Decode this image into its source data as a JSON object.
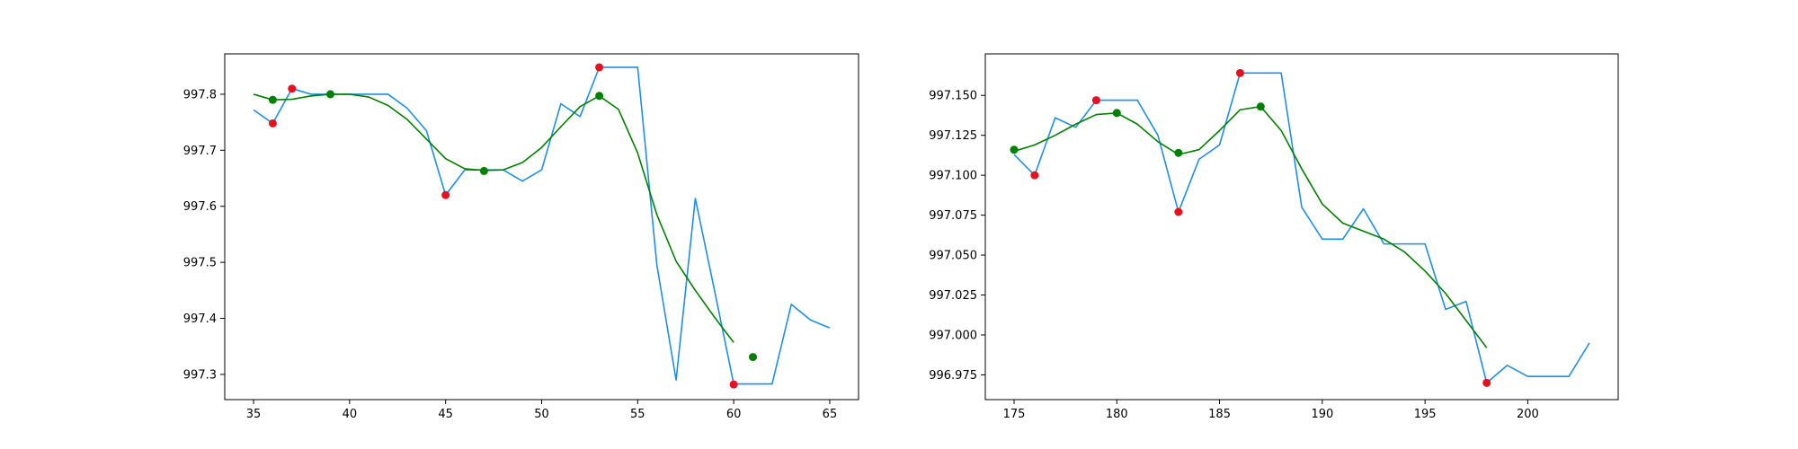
{
  "chart_data": [
    {
      "type": "line",
      "title": "",
      "xlabel": "",
      "ylabel": "",
      "xlim": [
        33.5,
        66.5
      ],
      "ylim": [
        997.255,
        997.872
      ],
      "xticks": [
        35,
        40,
        45,
        50,
        55,
        60,
        65
      ],
      "yticks": [
        997.3,
        997.4,
        997.5,
        997.6,
        997.7,
        997.8
      ],
      "ytick_decimals": 1,
      "grid": false,
      "legend": "none",
      "series": [
        {
          "color": "#1f8fe6",
          "x": [
            35,
            36,
            37,
            38,
            39,
            40,
            41,
            42,
            43,
            44,
            45,
            46,
            47,
            48,
            49,
            50,
            51,
            52,
            53,
            54,
            55,
            56,
            57,
            58,
            59,
            60,
            61,
            62,
            63,
            64,
            65
          ],
          "y": [
            997.772,
            997.748,
            997.81,
            997.8,
            997.8,
            997.8,
            997.8,
            997.8,
            997.775,
            997.735,
            997.62,
            997.665,
            997.665,
            997.665,
            997.645,
            997.665,
            997.783,
            997.76,
            997.848,
            997.848,
            997.848,
            997.495,
            997.29,
            997.614,
            997.45,
            997.283,
            997.283,
            997.283,
            997.425,
            997.397,
            997.383
          ]
        },
        {
          "color": "#008000",
          "x": [
            35,
            36,
            37,
            38,
            39,
            40,
            41,
            42,
            43,
            44,
            45,
            46,
            47,
            48,
            49,
            50,
            51,
            52,
            53,
            54,
            55,
            56,
            57,
            58,
            59,
            60
          ],
          "y": [
            997.8,
            997.79,
            997.791,
            997.797,
            997.8,
            997.8,
            997.795,
            997.78,
            997.755,
            997.72,
            997.685,
            997.667,
            997.664,
            997.665,
            997.678,
            997.705,
            997.742,
            997.778,
            997.797,
            997.773,
            997.695,
            997.585,
            997.502,
            997.45,
            997.402,
            997.357
          ]
        }
      ],
      "markers": [
        {
          "color": "#e6101e",
          "x": [
            36,
            37,
            45,
            53,
            60
          ],
          "y": [
            997.748,
            997.81,
            997.62,
            997.848,
            997.282
          ]
        },
        {
          "color": "#008000",
          "x": [
            36,
            39,
            47,
            53,
            61
          ],
          "y": [
            997.79,
            997.8,
            997.663,
            997.797,
            997.331
          ]
        }
      ]
    },
    {
      "type": "line",
      "title": "",
      "xlabel": "",
      "ylabel": "",
      "xlim": [
        173.6,
        204.4
      ],
      "ylim": [
        996.9595,
        997.176
      ],
      "xticks": [
        175,
        180,
        185,
        190,
        195,
        200
      ],
      "yticks": [
        996.975,
        997.0,
        997.025,
        997.05,
        997.075,
        997.1,
        997.125,
        997.15
      ],
      "ytick_decimals": 3,
      "grid": false,
      "legend": "none",
      "series": [
        {
          "color": "#1f8fe6",
          "x": [
            175,
            176,
            177,
            178,
            179,
            180,
            181,
            182,
            183,
            184,
            185,
            186,
            187,
            188,
            189,
            190,
            191,
            192,
            193,
            194,
            195,
            196,
            197,
            198,
            199,
            200,
            201,
            202,
            203
          ],
          "y": [
            997.113,
            997.1,
            997.136,
            997.13,
            997.147,
            997.147,
            997.147,
            997.125,
            997.077,
            997.11,
            997.119,
            997.164,
            997.164,
            997.164,
            997.08,
            997.06,
            997.06,
            997.079,
            997.057,
            997.057,
            997.057,
            997.016,
            997.021,
            996.97,
            996.981,
            996.974,
            996.974,
            996.974,
            996.995
          ]
        },
        {
          "color": "#008000",
          "x": [
            175,
            176,
            177,
            178,
            179,
            180,
            181,
            182,
            183,
            184,
            185,
            186,
            187,
            188,
            189,
            190,
            191,
            192,
            193,
            194,
            195,
            196,
            197,
            198
          ],
          "y": [
            997.115,
            997.119,
            997.125,
            997.132,
            997.138,
            997.139,
            997.132,
            997.121,
            997.113,
            997.116,
            997.128,
            997.141,
            997.143,
            997.128,
            997.104,
            997.082,
            997.07,
            997.065,
            997.06,
            997.052,
            997.04,
            997.026,
            997.009,
            996.992
          ]
        }
      ],
      "markers": [
        {
          "color": "#e6101e",
          "x": [
            176,
            179,
            183,
            186,
            198
          ],
          "y": [
            997.1,
            997.147,
            997.077,
            997.164,
            996.97
          ]
        },
        {
          "color": "#008000",
          "x": [
            175,
            180,
            183,
            187
          ],
          "y": [
            997.116,
            997.139,
            997.114,
            997.143
          ]
        }
      ]
    }
  ]
}
